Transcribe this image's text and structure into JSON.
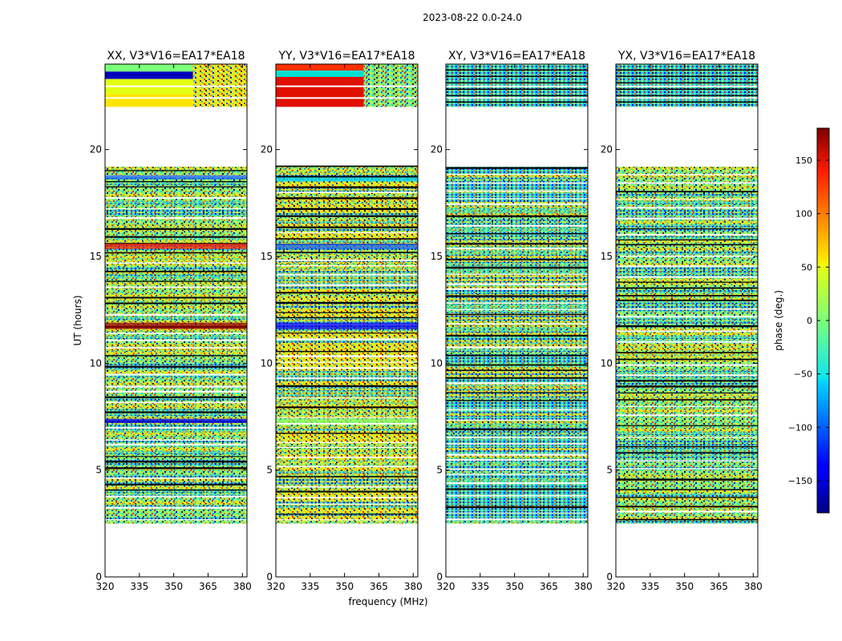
{
  "figure": {
    "suptitle": "2023-08-22 0.0-24.0",
    "xlabel": "frequency (MHz)",
    "ylabel": "UT (hours)"
  },
  "chart_data": [
    {
      "type": "heatmap",
      "title": "XX, V3*V16=EA17*EA18",
      "xlim": [
        320,
        382
      ],
      "ylim": [
        0,
        24
      ],
      "xticks": [
        320,
        335,
        350,
        365,
        380
      ],
      "yticks": [
        0,
        5,
        10,
        15,
        20
      ],
      "data_hours": [
        2.5,
        24.0
      ],
      "gap_hours": [
        [
          19.2,
          22.0
        ]
      ],
      "calibrator_band": [
        22.0,
        24.0
      ],
      "ylabel": "UT (hours)",
      "style": "xx"
    },
    {
      "type": "heatmap",
      "title": "YY, V3*V16=EA17*EA18",
      "xlim": [
        320,
        382
      ],
      "ylim": [
        0,
        24
      ],
      "xticks": [
        320,
        335,
        350,
        365,
        380
      ],
      "yticks": [
        0,
        5,
        10,
        15,
        20
      ],
      "data_hours": [
        2.5,
        24.0
      ],
      "gap_hours": [
        [
          19.2,
          22.0
        ]
      ],
      "calibrator_band": [
        22.0,
        24.0
      ],
      "style": "yy"
    },
    {
      "type": "heatmap",
      "title": "XY, V3*V16=EA17*EA18",
      "xlim": [
        320,
        382
      ],
      "ylim": [
        0,
        24
      ],
      "xticks": [
        320,
        335,
        350,
        365,
        380
      ],
      "yticks": [
        0,
        5,
        10,
        15,
        20
      ],
      "data_hours": [
        2.5,
        24.0
      ],
      "gap_hours": [
        [
          19.2,
          22.0
        ]
      ],
      "calibrator_band": [
        22.0,
        24.0
      ],
      "style": "cross"
    },
    {
      "type": "heatmap",
      "title": "YX, V3*V16=EA17*EA18",
      "xlim": [
        320,
        382
      ],
      "ylim": [
        0,
        24
      ],
      "xticks": [
        320,
        335,
        350,
        365,
        380
      ],
      "yticks": [
        0,
        5,
        10,
        15,
        20
      ],
      "data_hours": [
        2.5,
        24.0
      ],
      "gap_hours": [
        [
          19.2,
          22.0
        ]
      ],
      "calibrator_band": [
        22.0,
        24.0
      ],
      "style": "cross"
    }
  ],
  "colorbar": {
    "label": "phase (deg.)",
    "range": [
      -180,
      180
    ],
    "ticks": [
      150,
      100,
      50,
      0,
      -50,
      -100,
      -150
    ],
    "tick_labels": [
      "150",
      "100",
      "50",
      "0",
      "−50",
      "−100",
      "−150"
    ],
    "colormap": "jet"
  }
}
